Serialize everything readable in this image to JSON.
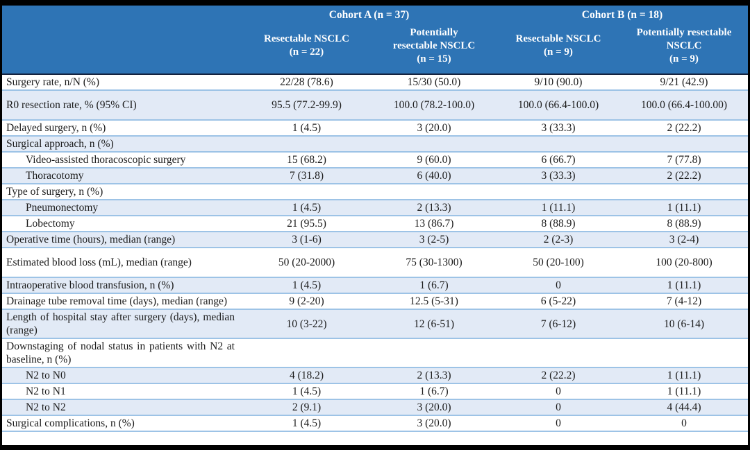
{
  "colors": {
    "header_bg": "#2E74B5",
    "header_text": "#FFFFFF",
    "band_bg": "#E2EAF6",
    "grid_line": "#9DC3E6",
    "header_divider": "#15233F",
    "frame": "#000000"
  },
  "table": {
    "header": {
      "row_label_header": "",
      "groups": [
        {
          "label": "Cohort A (n = 37)",
          "columns": [
            {
              "text": "Resectable NSCLC\n(n = 22)"
            },
            {
              "text": "Potentially\nresectable NSCLC\n(n = 15)"
            }
          ]
        },
        {
          "label": "Cohort B (n = 18)",
          "columns": [
            {
              "text": "Resectable NSCLC\n(n = 9)"
            },
            {
              "text": "Potentially resectable\nNSCLC\n(n = 9)"
            }
          ]
        }
      ]
    },
    "rows": [
      {
        "label": "Surgery rate, n/N (%)",
        "values": [
          "22/28 (78.6)",
          "15/30 (50.0)",
          "9/10 (90.0)",
          "9/21 (42.9)"
        ],
        "indent": false,
        "tall": false
      },
      {
        "label": "R0 resection rate, % (95% CI)",
        "values": [
          "95.5 (77.2-99.9)",
          "100.0 (78.2-100.0)",
          "100.0 (66.4-100.0)",
          "100.0 (66.4-100.00)"
        ],
        "indent": false,
        "tall": true
      },
      {
        "label": "Delayed surgery, n (%)",
        "values": [
          "1 (4.5)",
          "3 (20.0)",
          "3 (33.3)",
          "2 (22.2)"
        ],
        "indent": false,
        "tall": false
      },
      {
        "label": "Surgical approach, n (%)",
        "values": [
          "",
          "",
          "",
          ""
        ],
        "indent": false,
        "tall": false
      },
      {
        "label": "Video-assisted thoracoscopic surgery",
        "values": [
          "15 (68.2)",
          "9 (60.0)",
          "6 (66.7)",
          "7 (77.8)"
        ],
        "indent": true,
        "tall": false
      },
      {
        "label": "Thoracotomy",
        "values": [
          "7 (31.8)",
          "6 (40.0)",
          "3 (33.3)",
          "2 (22.2)"
        ],
        "indent": true,
        "tall": false
      },
      {
        "label": "Type of surgery, n (%)",
        "values": [
          "",
          "",
          "",
          ""
        ],
        "indent": false,
        "tall": false
      },
      {
        "label": "Pneumonectomy",
        "values": [
          "1 (4.5)",
          "2 (13.3)",
          "1 (11.1)",
          "1 (11.1)"
        ],
        "indent": true,
        "tall": false
      },
      {
        "label": "Lobectomy",
        "values": [
          "21 (95.5)",
          "13 (86.7)",
          "8 (88.9)",
          "8 (88.9)"
        ],
        "indent": true,
        "tall": false
      },
      {
        "label": "Operative time (hours), median (range)",
        "values": [
          "3 (1-6)",
          "3 (2-5)",
          "2 (2-3)",
          "3 (2-4)"
        ],
        "indent": false,
        "tall": false
      },
      {
        "label": "Estimated blood loss (mL), median (range)",
        "values": [
          "50 (20-2000)",
          "75 (30-1300)",
          "50 (20-100)",
          "100 (20-800)"
        ],
        "indent": false,
        "tall": true
      },
      {
        "label": "Intraoperative blood transfusion, n (%)",
        "values": [
          "1 (4.5)",
          "1 (6.7)",
          "0",
          "1 (11.1)"
        ],
        "indent": false,
        "tall": false
      },
      {
        "label": "Drainage tube removal time (days), median (range)",
        "values": [
          "9 (2-20)",
          "12.5 (5-31)",
          "6 (5-22)",
          "7 (4-12)"
        ],
        "indent": false,
        "tall": false
      },
      {
        "label": "Length of hospital stay after surgery (days), median (range)",
        "values": [
          "10 (3-22)",
          "12 (6-51)",
          "7 (6-12)",
          "10 (6-14)"
        ],
        "indent": false,
        "tall": false
      },
      {
        "label": "Downstaging of nodal status in patients with N2 at baseline, n (%)",
        "values": [
          "",
          "",
          "",
          ""
        ],
        "indent": false,
        "tall": false
      },
      {
        "label": "N2 to N0",
        "values": [
          "4 (18.2)",
          "2 (13.3)",
          "2 (22.2)",
          "1 (11.1)"
        ],
        "indent": true,
        "tall": false
      },
      {
        "label": "N2 to N1",
        "values": [
          "1 (4.5)",
          "1 (6.7)",
          "0",
          "1 (11.1)"
        ],
        "indent": true,
        "tall": false
      },
      {
        "label": "N2 to N2",
        "values": [
          "2 (9.1)",
          "3 (20.0)",
          "0",
          "4 (44.4)"
        ],
        "indent": true,
        "tall": false
      },
      {
        "label": "Surgical complications, n (%)",
        "values": [
          "1 (4.5)",
          "3 (20.0)",
          "0",
          "0"
        ],
        "indent": false,
        "tall": false
      }
    ]
  }
}
